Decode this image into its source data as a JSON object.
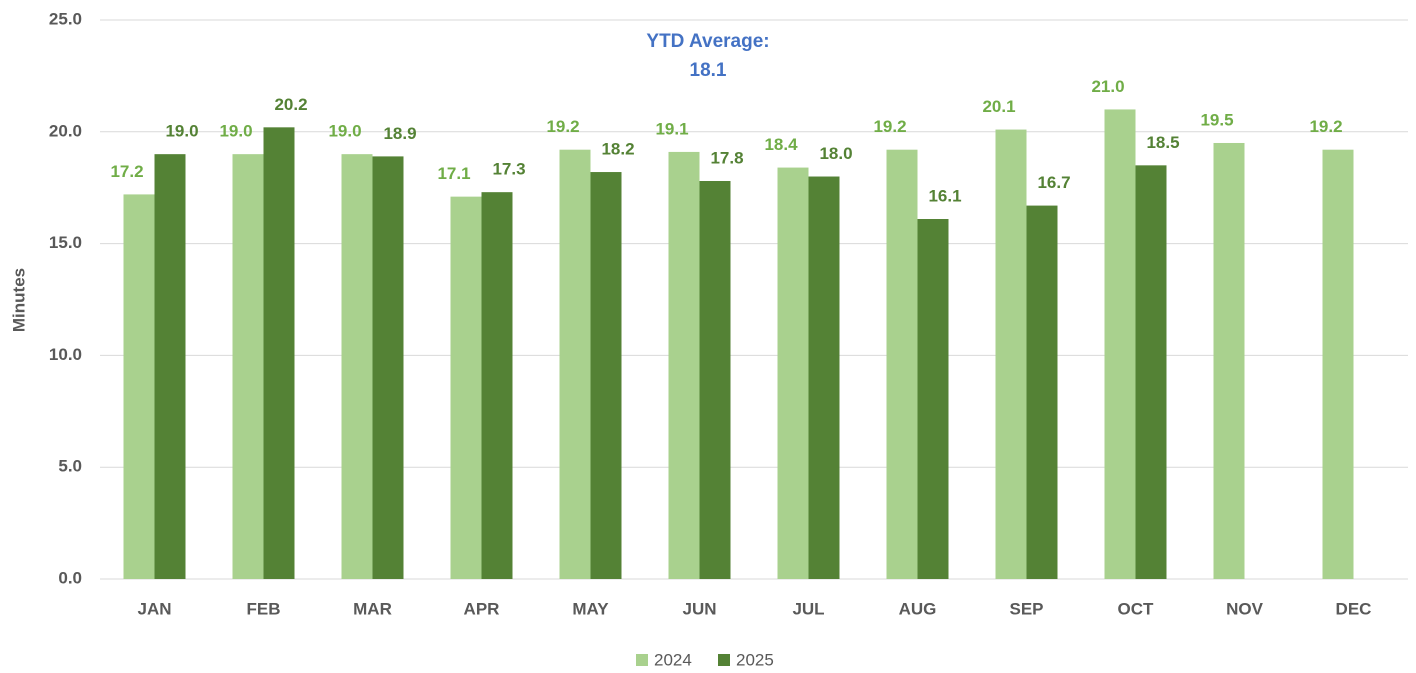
{
  "chart_data": {
    "type": "bar",
    "y_label": "Minutes",
    "annotation": [
      "YTD Average:",
      "18.1"
    ],
    "categories": [
      "JAN",
      "FEB",
      "MAR",
      "APR",
      "MAY",
      "JUN",
      "JUL",
      "AUG",
      "SEP",
      "OCT",
      "NOV",
      "DEC"
    ],
    "series": [
      {
        "name": "2024",
        "color": "#a9d18e",
        "label_color": "#70ad47",
        "values": [
          17.2,
          19.0,
          19.0,
          17.1,
          19.2,
          19.1,
          18.4,
          19.2,
          20.1,
          21.0,
          19.5,
          19.2
        ],
        "value_labels": [
          "17.2",
          "19.0",
          "19.0",
          "17.1",
          "19.2",
          "19.1",
          "18.4",
          "19.2",
          "20.1",
          "21.0",
          "19.5",
          "19.2"
        ]
      },
      {
        "name": "2025",
        "color": "#548235",
        "label_color": "#548235",
        "values": [
          19.0,
          20.2,
          18.9,
          17.3,
          18.2,
          17.8,
          18.0,
          16.1,
          16.7,
          18.5,
          null,
          null
        ],
        "value_labels": [
          "19.0",
          "20.2",
          "18.9",
          "17.3",
          "18.2",
          "17.8",
          "18.0",
          "16.1",
          "16.7",
          "18.5",
          null,
          null
        ]
      }
    ],
    "ylim": [
      0,
      25
    ],
    "yticks": [
      {
        "value": 0,
        "label": "0.0"
      },
      {
        "value": 5,
        "label": "5.0"
      },
      {
        "value": 10,
        "label": "10.0"
      },
      {
        "value": 15,
        "label": "15.0"
      },
      {
        "value": 20,
        "label": "20.0"
      },
      {
        "value": 25,
        "label": "25.0"
      }
    ],
    "grid": true,
    "legend": "bottom"
  }
}
